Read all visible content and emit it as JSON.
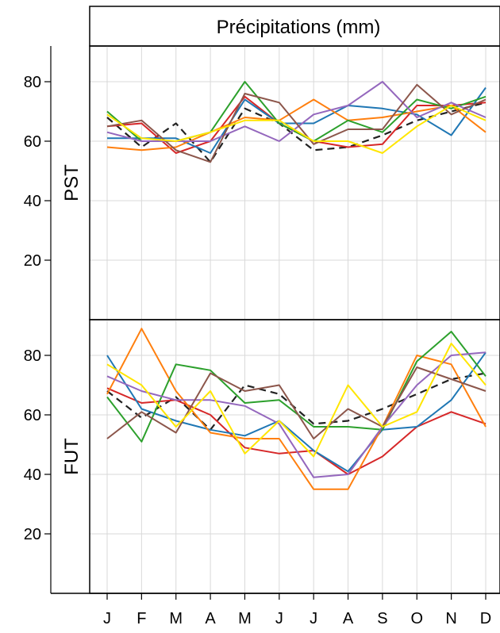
{
  "chart_data": {
    "type": "line",
    "title": "Précipitations (mm)",
    "categories": [
      "J",
      "F",
      "M",
      "A",
      "M",
      "J",
      "J",
      "A",
      "S",
      "O",
      "N",
      "D"
    ],
    "yticks": [
      20,
      40,
      60,
      80
    ],
    "ylim": [
      0,
      92
    ],
    "grid": true,
    "panels": [
      {
        "label": "PST",
        "series": [
          {
            "color": "#222222",
            "dashed": true,
            "values": [
              68,
              58,
              66,
              53,
              71,
              66,
              57,
              58,
              62,
              67,
              70,
              73
            ]
          },
          {
            "color": "#d62728",
            "values": [
              65,
              66,
              56,
              60,
              75,
              66,
              60,
              58,
              59,
              72,
              72,
              73
            ]
          },
          {
            "color": "#1f77b4",
            "values": [
              61,
              61,
              61,
              56,
              74,
              66,
              66,
              72,
              71,
              69,
              62,
              78
            ]
          },
          {
            "color": "#ff7f0e",
            "values": [
              58,
              57,
              58,
              63,
              68,
              67,
              74,
              67,
              68,
              70,
              72,
              63
            ]
          },
          {
            "color": "#2ca02c",
            "values": [
              70,
              60,
              60,
              63,
              80,
              66,
              60,
              67,
              63,
              74,
              71,
              75
            ]
          },
          {
            "color": "#9467bd",
            "values": [
              63,
              60,
              60,
              60,
              65,
              60,
              69,
              72,
              80,
              68,
              73,
              68
            ]
          },
          {
            "color": "#8c564b",
            "values": [
              65,
              67,
              57,
              53,
              76,
              73,
              59,
              64,
              64,
              79,
              69,
              74
            ]
          },
          {
            "color": "#ffe600",
            "values": [
              69,
              61,
              60,
              63,
              67,
              67,
              60,
              60,
              56,
              65,
              72,
              67
            ]
          }
        ]
      },
      {
        "label": "FUT",
        "series": [
          {
            "color": "#222222",
            "dashed": true,
            "values": [
              68,
              59,
              66,
              55,
              70,
              67,
              57,
              58,
              62,
              67,
              72,
              74
            ]
          },
          {
            "color": "#d62728",
            "values": [
              69,
              64,
              65,
              60,
              49,
              47,
              48,
              40,
              46,
              56,
              61,
              57
            ]
          },
          {
            "color": "#1f77b4",
            "values": [
              80,
              62,
              58,
              55,
              53,
              58,
              48,
              41,
              55,
              56,
              65,
              81
            ]
          },
          {
            "color": "#ff7f0e",
            "values": [
              67,
              89,
              68,
              54,
              52,
              52,
              35,
              35,
              56,
              80,
              77,
              56
            ]
          },
          {
            "color": "#2ca02c",
            "values": [
              66,
              51,
              77,
              75,
              64,
              65,
              56,
              56,
              55,
              78,
              88,
              73
            ]
          },
          {
            "color": "#9467bd",
            "values": [
              73,
              68,
              65,
              65,
              63,
              57,
              39,
              40,
              56,
              70,
              80,
              81
            ]
          },
          {
            "color": "#8c564b",
            "values": [
              52,
              61,
              54,
              74,
              68,
              70,
              52,
              62,
              56,
              76,
              72,
              68
            ]
          },
          {
            "color": "#ffe600",
            "values": [
              77,
              70,
              56,
              68,
              47,
              58,
              46,
              70,
              56,
              61,
              84,
              70
            ]
          }
        ]
      }
    ]
  }
}
